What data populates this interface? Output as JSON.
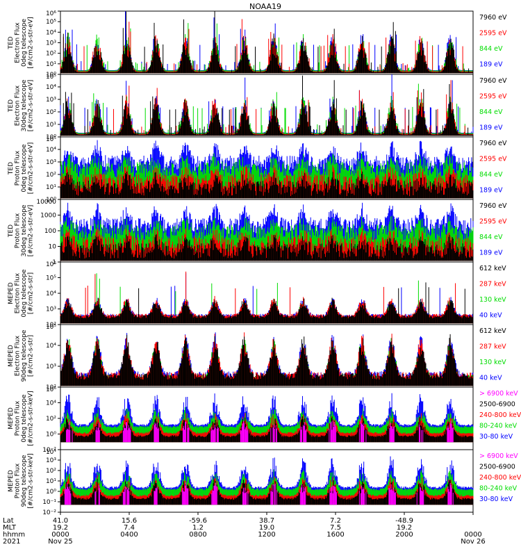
{
  "title": "NOAA19",
  "chart_data": [
    {
      "type": "line",
      "ylabel": [
        "TED",
        "Electron Flux",
        "0deg telescope",
        "[#/cm2-s-str-eV]"
      ],
      "ylog": [
        0,
        6
      ],
      "ytick_labels": [
        "10⁰",
        "10¹",
        "10²",
        "10³",
        "10⁴",
        "10⁵",
        "10⁶"
      ],
      "series": [
        {
          "name": "7960 eV",
          "color": "#000000"
        },
        {
          "name": "2595 eV",
          "color": "#ff0000"
        },
        {
          "name": "844 eV",
          "color": "#00dd00"
        },
        {
          "name": "189 eV",
          "color": "#0000ff"
        }
      ],
      "style": "ted_e"
    },
    {
      "type": "line",
      "ylabel": [
        "TED",
        "Electron Flux",
        "30deg telescope",
        "[#/cm2-s-str-eV]"
      ],
      "ylog": [
        0,
        5
      ],
      "ytick_labels": [
        "10⁰",
        "10¹",
        "10²",
        "10³",
        "10⁴",
        "10⁵"
      ],
      "series": [
        {
          "name": "7960 eV",
          "color": "#000000"
        },
        {
          "name": "2595 eV",
          "color": "#ff0000"
        },
        {
          "name": "844 eV",
          "color": "#00dd00"
        },
        {
          "name": "189 eV",
          "color": "#0000ff"
        }
      ],
      "style": "ted_e"
    },
    {
      "type": "line",
      "ylabel": [
        "TED",
        "Proton Flux",
        "0deg telescope",
        "[#/cm2-s-str-eV]"
      ],
      "ylog": [
        0,
        5
      ],
      "ytick_labels": [
        "10⁰",
        "10¹",
        "10²",
        "10³",
        "10⁴",
        "10⁵"
      ],
      "series": [
        {
          "name": "7960 eV",
          "color": "#000000"
        },
        {
          "name": "2595 eV",
          "color": "#ff0000"
        },
        {
          "name": "844 eV",
          "color": "#00dd00"
        },
        {
          "name": "189 eV",
          "color": "#0000ff"
        }
      ],
      "style": "ted_p"
    },
    {
      "type": "line",
      "ylabel": [
        "TED",
        "Proton Flux",
        "30deg telescope",
        "[#/cm2-s-str-eV]"
      ],
      "ylog": [
        0,
        4
      ],
      "ytick_labels": [
        "1",
        "10",
        "100",
        "1000",
        "10000"
      ],
      "series": [
        {
          "name": "7960 eV",
          "color": "#000000"
        },
        {
          "name": "2595 eV",
          "color": "#ff0000"
        },
        {
          "name": "844 eV",
          "color": "#00dd00"
        },
        {
          "name": "189 eV",
          "color": "#0000ff"
        }
      ],
      "style": "ted_p"
    },
    {
      "type": "line",
      "ylabel": [
        "MEPED",
        "Electron Flux",
        "0deg telescope",
        "[#/cm2-s-str]"
      ],
      "ylog": [
        2,
        6
      ],
      "ytick_labels": [
        "10²",
        "10³",
        "10⁴",
        "10⁵",
        "10⁶"
      ],
      "series": [
        {
          "name": "612 keV",
          "color": "#000000"
        },
        {
          "name": "287 keV",
          "color": "#ff0000"
        },
        {
          "name": "130 keV",
          "color": "#00dd00"
        },
        {
          "name": "40 keV",
          "color": "#0000ff"
        }
      ],
      "style": "mep_e0"
    },
    {
      "type": "line",
      "ylabel": [
        "MEPED",
        "Electron Flux",
        "90deg telescope",
        "[#/cm2-s-str]"
      ],
      "ylog": [
        2,
        5
      ],
      "ytick_labels": [
        "10²",
        "10³",
        "10⁴",
        "10⁵"
      ],
      "series": [
        {
          "name": "612 keV",
          "color": "#000000"
        },
        {
          "name": "287 keV",
          "color": "#ff0000"
        },
        {
          "name": "130 keV",
          "color": "#00dd00"
        },
        {
          "name": "40 keV",
          "color": "#0000ff"
        }
      ],
      "style": "mep_e90"
    },
    {
      "type": "line",
      "ylabel": [
        "MEPED",
        "Proton Flux",
        "0deg telescope",
        "[#/cm2-s-str-keV]"
      ],
      "ylog": [
        -2,
        6
      ],
      "ytick_labels": [
        "10⁻²",
        "10⁰",
        "10²",
        "10⁴",
        "10⁶"
      ],
      "series": [
        {
          "name": "> 6900 keV",
          "color": "#ff00ff"
        },
        {
          "name": "2500-6900",
          "color": "#000000"
        },
        {
          "name": "240-800 keV",
          "color": "#ff0000"
        },
        {
          "name": "80-240 keV",
          "color": "#00dd00"
        },
        {
          "name": "30-80 keV",
          "color": "#0000ff"
        }
      ],
      "style": "mep_p0"
    },
    {
      "type": "line",
      "ylabel": [
        "MEPED",
        "Proton Flux",
        "90deg telescope",
        "[#/cm2-s-str-keV]"
      ],
      "ylog": [
        -2,
        4
      ],
      "ytick_labels": [
        "10⁻²",
        "10⁻¹",
        "10⁰",
        "10¹",
        "10²",
        "10³",
        "10⁴"
      ],
      "series": [
        {
          "name": "> 6900 keV",
          "color": "#ff00ff"
        },
        {
          "name": "2500-6900",
          "color": "#000000"
        },
        {
          "name": "240-800 keV",
          "color": "#ff0000"
        },
        {
          "name": "80-240 keV",
          "color": "#00dd00"
        },
        {
          "name": "30-80 keV",
          "color": "#0000ff"
        }
      ],
      "style": "mep_p90"
    }
  ],
  "xaxis": {
    "row_labels": [
      "Lat",
      "MLT",
      "hhmm",
      "2021"
    ],
    "ticks": [
      {
        "lat": "41.0",
        "mlt": "19.2",
        "hhmm": "0000",
        "date": "Nov 25"
      },
      {
        "lat": "15.6",
        "mlt": "7.4",
        "hhmm": "0400",
        "date": ""
      },
      {
        "lat": "-59.6",
        "mlt": "1.2",
        "hhmm": "0800",
        "date": ""
      },
      {
        "lat": "38.7",
        "mlt": "19.0",
        "hhmm": "1200",
        "date": ""
      },
      {
        "lat": "7.2",
        "mlt": "7.5",
        "hhmm": "1600",
        "date": ""
      },
      {
        "lat": "-48.9",
        "mlt": "19.2",
        "hhmm": "2000",
        "date": ""
      },
      {
        "lat": "",
        "mlt": "",
        "hhmm": "0000",
        "date": "Nov 26"
      }
    ]
  }
}
